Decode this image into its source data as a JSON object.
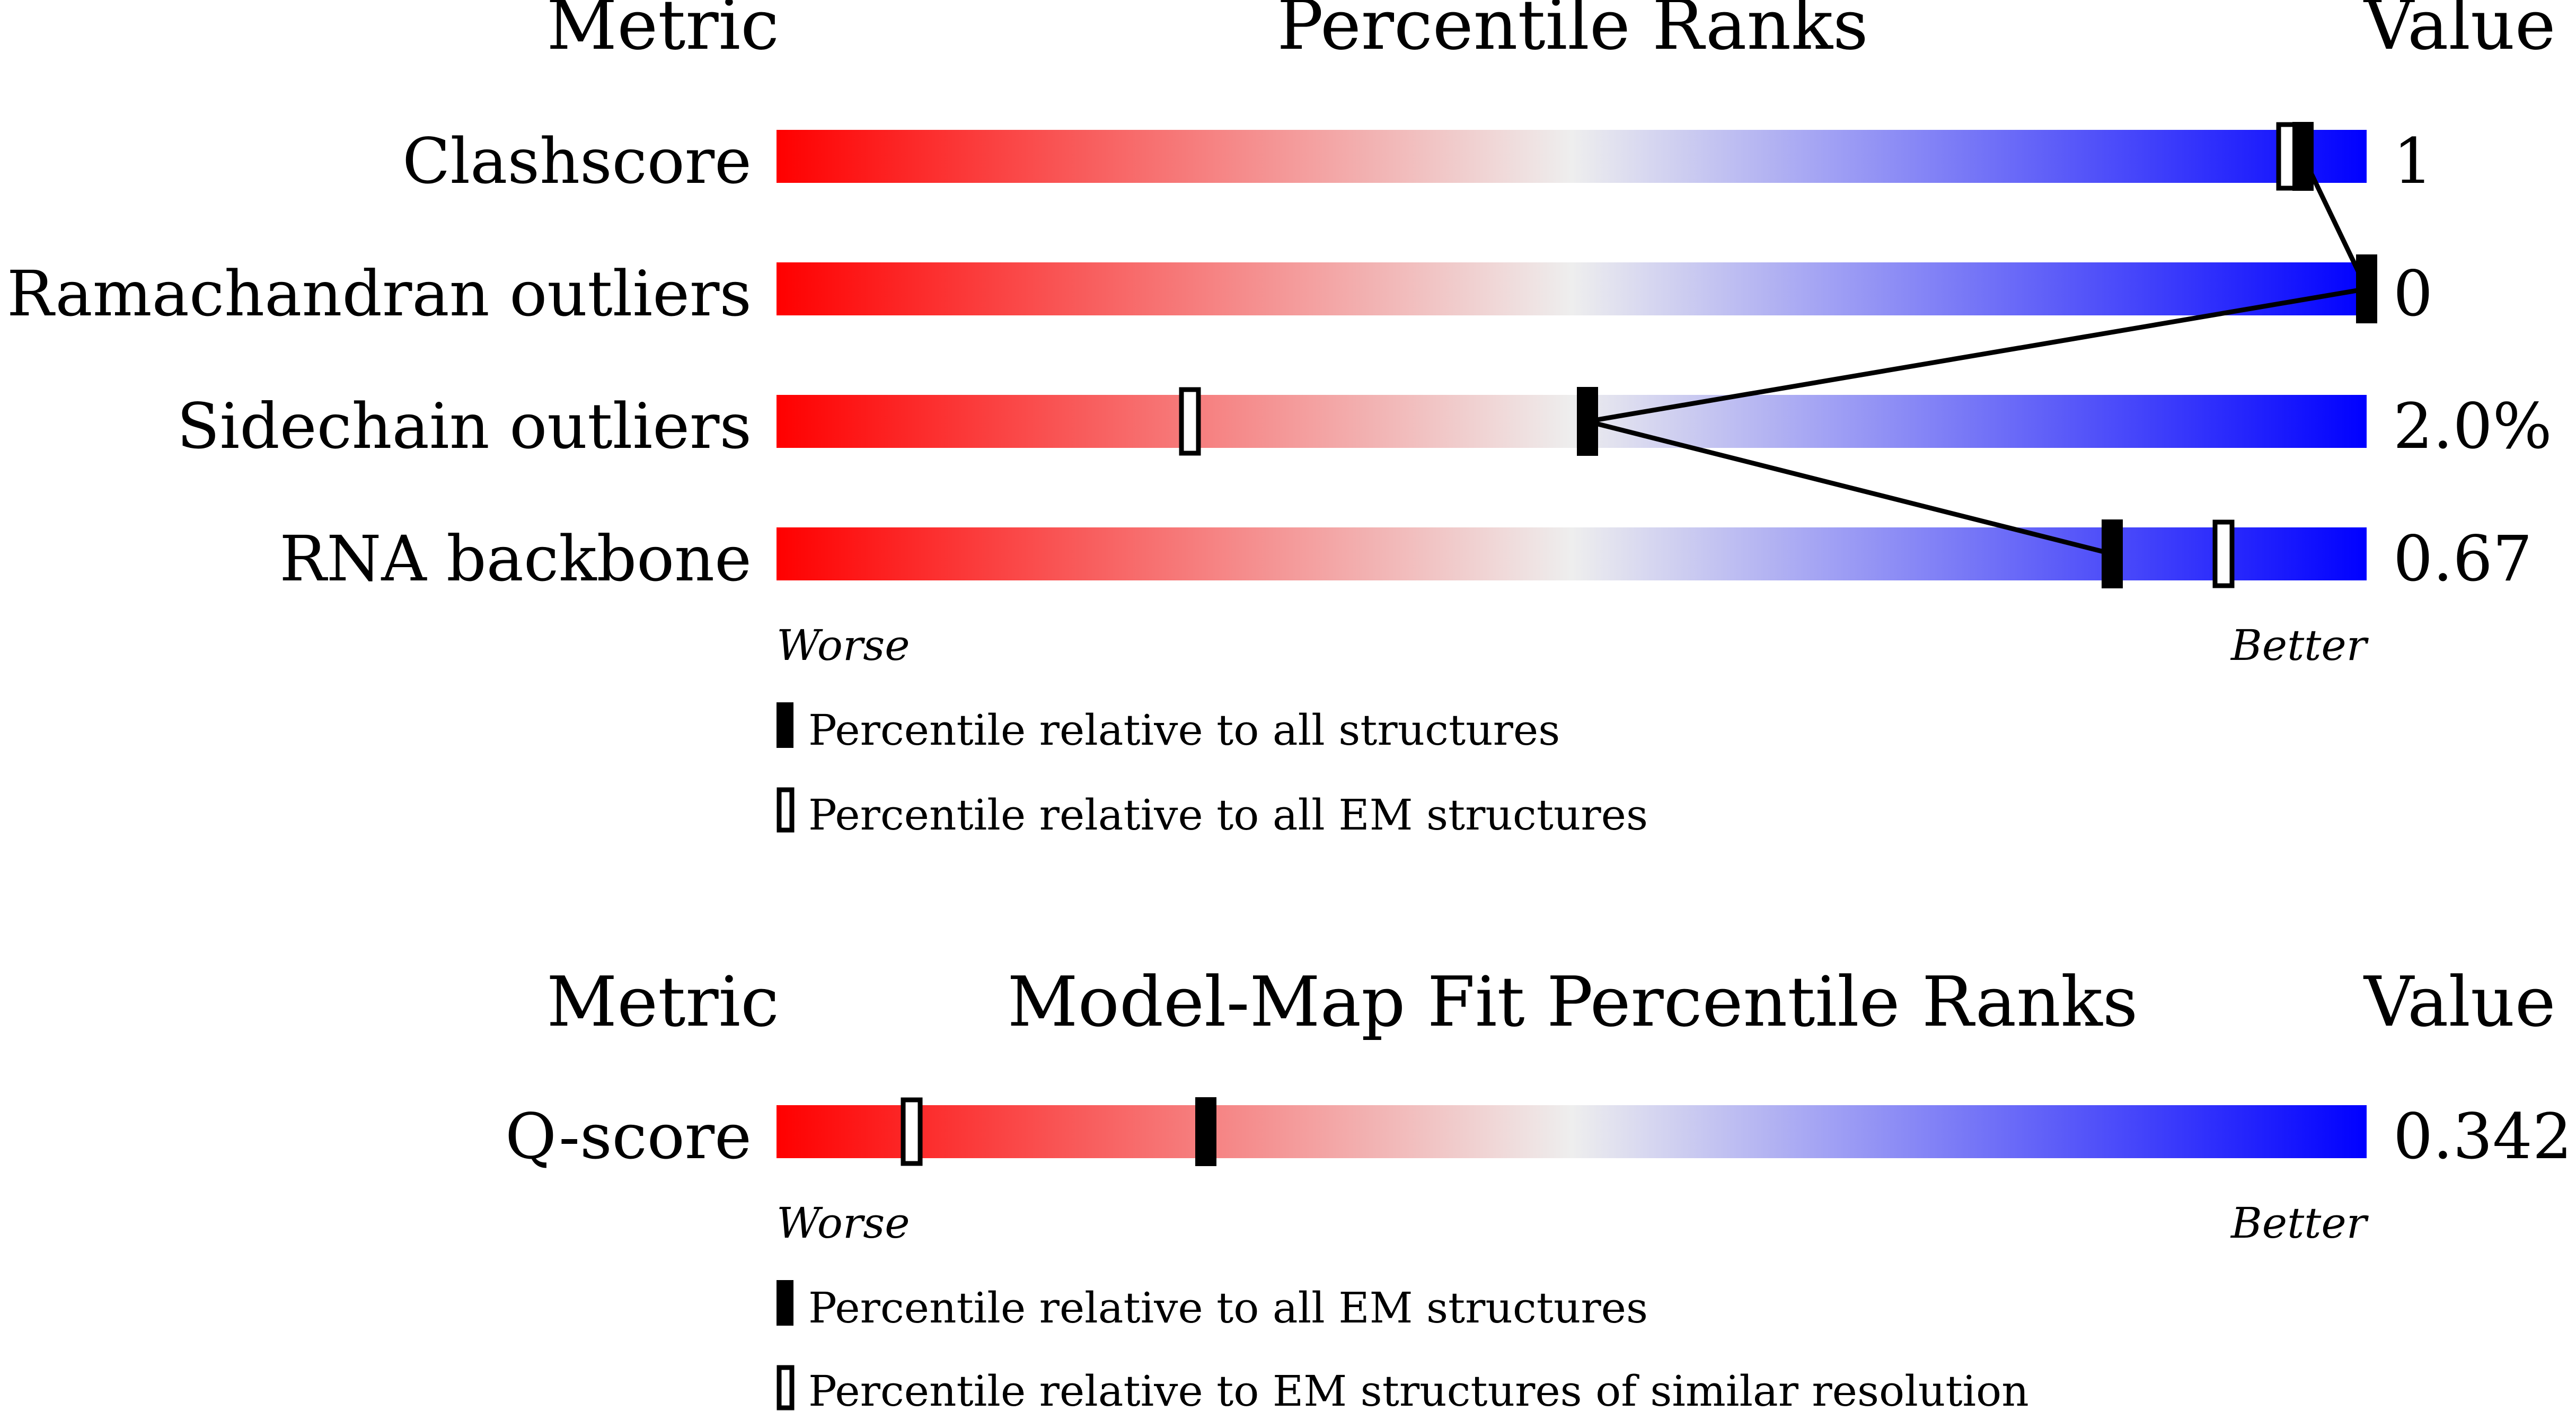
{
  "chart_data": [
    {
      "type": "bar",
      "header": {
        "metric": "Metric",
        "title": "Percentile Ranks",
        "value": "Value"
      },
      "xlim": [
        0,
        100
      ],
      "metrics": [
        {
          "label": "Clashscore",
          "value": "1",
          "percentile_all": 96,
          "percentile_em": 95
        },
        {
          "label": "Ramachandran outliers",
          "value": "0",
          "percentile_all": 100
        },
        {
          "label": "Sidechain outliers",
          "value": "2.0%",
          "percentile_all": 51,
          "percentile_em": 26
        },
        {
          "label": "RNA backbone",
          "value": "0.67",
          "percentile_all": 84,
          "percentile_em": 91
        }
      ],
      "axis": {
        "worse": "Worse",
        "better": "Better"
      },
      "legend": [
        {
          "marker": "filled",
          "text": "Percentile relative to all structures"
        },
        {
          "marker": "open",
          "text": "Percentile relative to all EM structures"
        }
      ]
    },
    {
      "type": "bar",
      "header": {
        "metric": "Metric",
        "title": "Model-Map Fit Percentile Ranks",
        "value": "Value"
      },
      "xlim": [
        0,
        100
      ],
      "metrics": [
        {
          "label": "Q-score",
          "value": "0.342",
          "percentile_all": 27,
          "percentile_em": 8.5
        }
      ],
      "axis": {
        "worse": "Worse",
        "better": "Better"
      },
      "legend": [
        {
          "marker": "filled",
          "text": "Percentile relative to all EM structures"
        },
        {
          "marker": "open",
          "text": "Percentile relative to EM structures of similar resolution"
        }
      ]
    }
  ],
  "colors": {
    "worse": "#ff0000",
    "middle": "#eeeeee",
    "better": "#0000ff",
    "marker": "#000000"
  }
}
